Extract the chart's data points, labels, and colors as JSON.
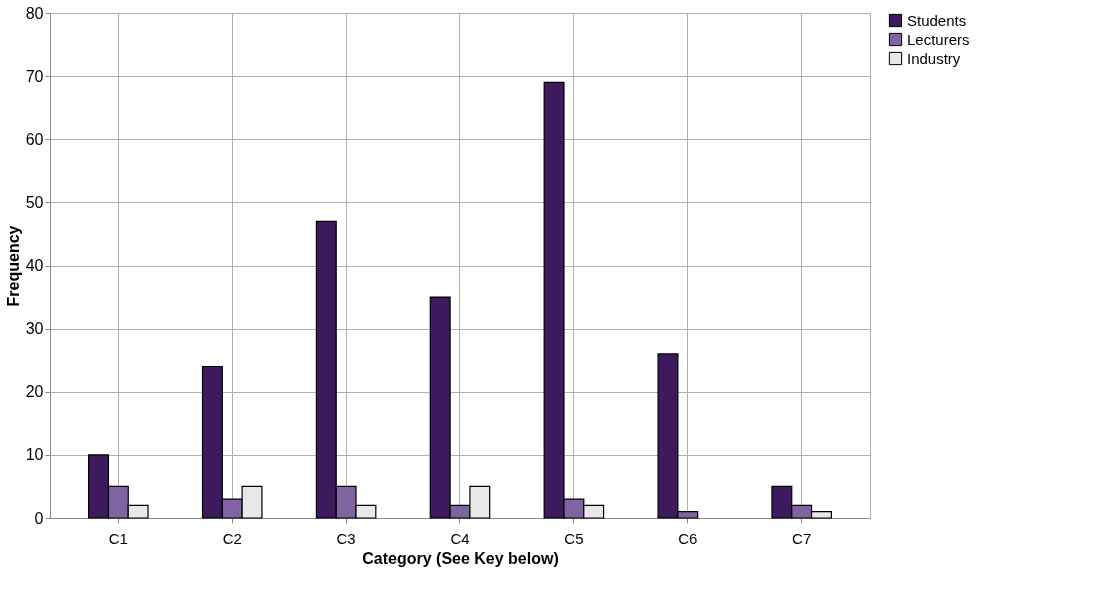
{
  "chart_data": {
    "type": "bar",
    "xlabel": "Category (See Key below)",
    "ylabel": "Frequency",
    "categories": [
      "C1",
      "C2",
      "C3",
      "C4",
      "C5",
      "C6",
      "C7"
    ],
    "series": [
      {
        "name": "Students",
        "color": "#3d1a5e",
        "values": [
          10,
          24,
          47,
          35,
          69,
          26,
          5
        ]
      },
      {
        "name": "Lecturers",
        "color": "#8064a2",
        "values": [
          5,
          3,
          5,
          2,
          3,
          1,
          2
        ]
      },
      {
        "name": "Industry",
        "color": "#e8e8e8",
        "values": [
          2,
          5,
          2,
          5,
          2,
          null,
          1
        ]
      }
    ],
    "ylim": [
      0,
      80
    ],
    "yticks": [
      0,
      10,
      20,
      30,
      40,
      50,
      60,
      70,
      80
    ],
    "grid": true,
    "legend": "right"
  }
}
